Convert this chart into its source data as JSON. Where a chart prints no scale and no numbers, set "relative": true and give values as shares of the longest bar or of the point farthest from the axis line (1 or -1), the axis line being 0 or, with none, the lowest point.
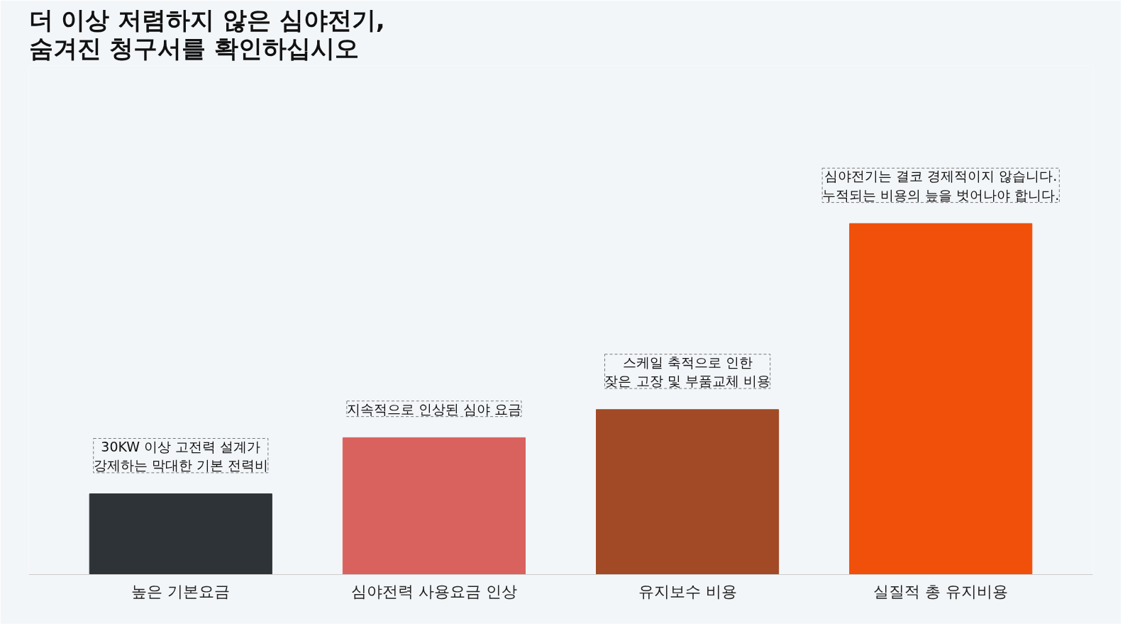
{
  "chart_data": {
    "type": "bar",
    "title": "더 이상 저렴하지 않은 심야전기,\n숨겨진 청구서를 확인하십시오",
    "categories": [
      "높은 기본요금",
      "심야전력 사용요금 인상",
      "유지보수 비용",
      "실질적 총 유지비용"
    ],
    "values": [
      0.23,
      0.39,
      0.47,
      1
    ],
    "colors": [
      "#2e3338",
      "#d9625f",
      "#a24a25",
      "#f0500a"
    ],
    "relative": true,
    "annotations": [
      {
        "text": "30KW 이상 고전력 설계가\n강제하는 막대한 기본 전력비",
        "x": "높은 기본요금",
        "y": 0.23
      },
      {
        "text": "지속적으로 인상된 심야 요금",
        "x": "심야전력 사용요금 인상",
        "y": 0.39
      },
      {
        "text": "스케일 축적으로 인한\n잦은 고장 및 부품교체 비용",
        "x": "유지보수 비용",
        "y": 0.47
      },
      {
        "text": "심야전기는 결코 경제적이지 않습니다.\n누적되는 비용의 늪을 벗어나야 합니다.",
        "x": "실질적 총 유지비용",
        "y": 1
      }
    ]
  }
}
